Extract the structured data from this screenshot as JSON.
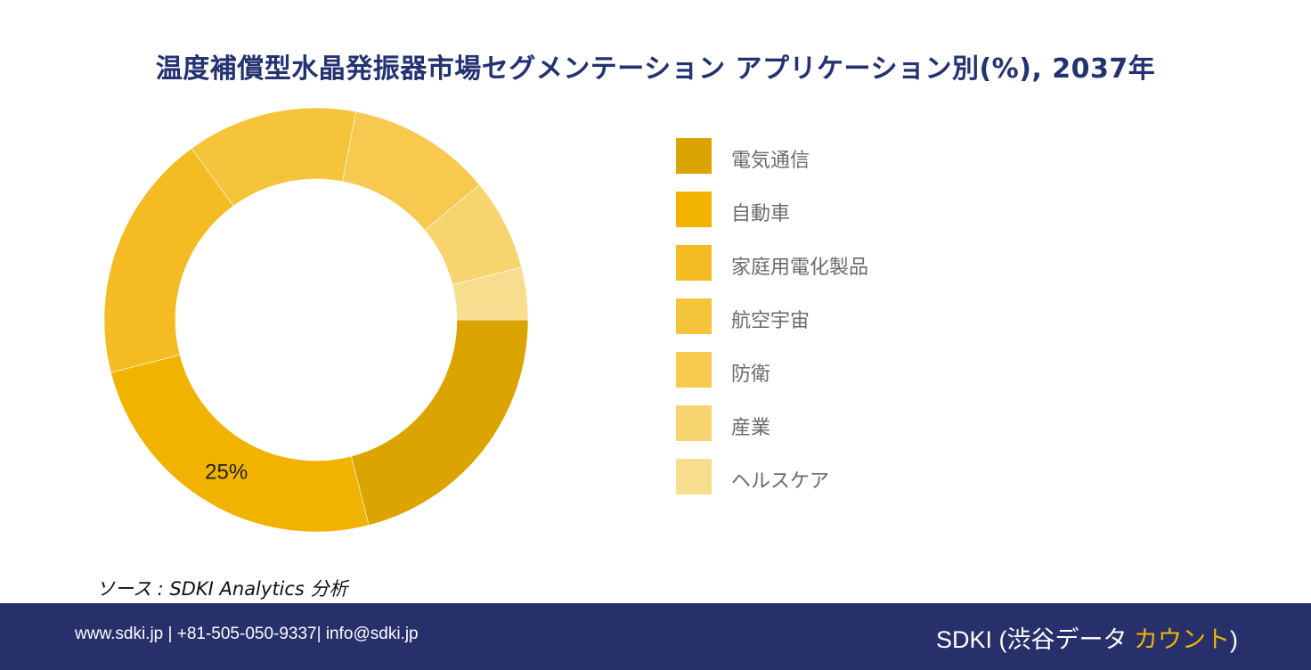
{
  "title": "温度補償型水晶発振器市場セグメンテーション アプリケーション別(%), 2037年",
  "chart_data": {
    "type": "pie",
    "donut": true,
    "categories": [
      "電気通信",
      "自動車",
      "家庭用電化製品",
      "航空宇宙",
      "防衛",
      "産業",
      "ヘルスケア"
    ],
    "values": [
      21,
      25,
      19,
      13,
      11,
      7,
      4
    ],
    "colors": [
      "#dba400",
      "#f2b300",
      "#f4bc22",
      "#f6c43a",
      "#f7ca4f",
      "#f8d46e",
      "#f9dd8f"
    ],
    "data_labels": [
      "",
      "25%",
      "",
      "",
      "",
      "",
      ""
    ],
    "legend_position": "right"
  },
  "source": "ソース : SDKI Analytics  分析",
  "footer": {
    "contact": "www.sdki.jp | +81-505-050-9337| info@sdki.jp",
    "brand_prefix": "SDKI (渋谷データ ",
    "brand_accent": "カウント",
    "brand_suffix": ")"
  }
}
